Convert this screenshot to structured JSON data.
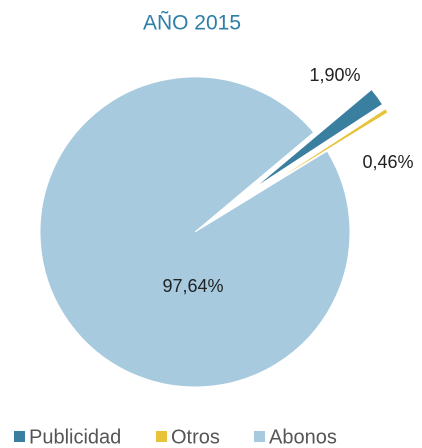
{
  "chart_data": {
    "type": "pie",
    "title": "AÑO 2015",
    "categories": [
      "Publicidad",
      "Otros",
      "Abonos"
    ],
    "values": [
      1.9,
      0.46,
      97.64
    ],
    "value_labels": [
      "1,90%",
      "0,46%",
      "97,64%"
    ],
    "colors": [
      "#3a7f9f",
      "#e8c33a",
      "#a7cadf"
    ],
    "legend": "bottom"
  }
}
